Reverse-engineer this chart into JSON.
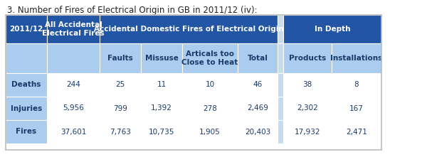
{
  "title": "3. Number of Fires of Electrical Origin in GB in 2011/12 (iv):",
  "title_fontsize": 8.5,
  "header_bg_dark": "#2255A4",
  "header_bg_light": "#AACCEE",
  "header_bg_very_light": "#C5DCEE",
  "cell_bg_white": "#FFFFFF",
  "header_text_color": "#FFFFFF",
  "row_label_text_color": "#1A3A6A",
  "rows": [
    [
      "Deaths",
      "244",
      "25",
      "11",
      "10",
      "46",
      "38",
      "8"
    ],
    [
      "Injuries",
      "5,956",
      "799",
      "1,392",
      "278",
      "2,469",
      "2,302",
      "167"
    ],
    [
      "Fires",
      "37,601",
      "7,763",
      "10,735",
      "1,905",
      "20,403",
      "17,932",
      "2,471"
    ]
  ]
}
